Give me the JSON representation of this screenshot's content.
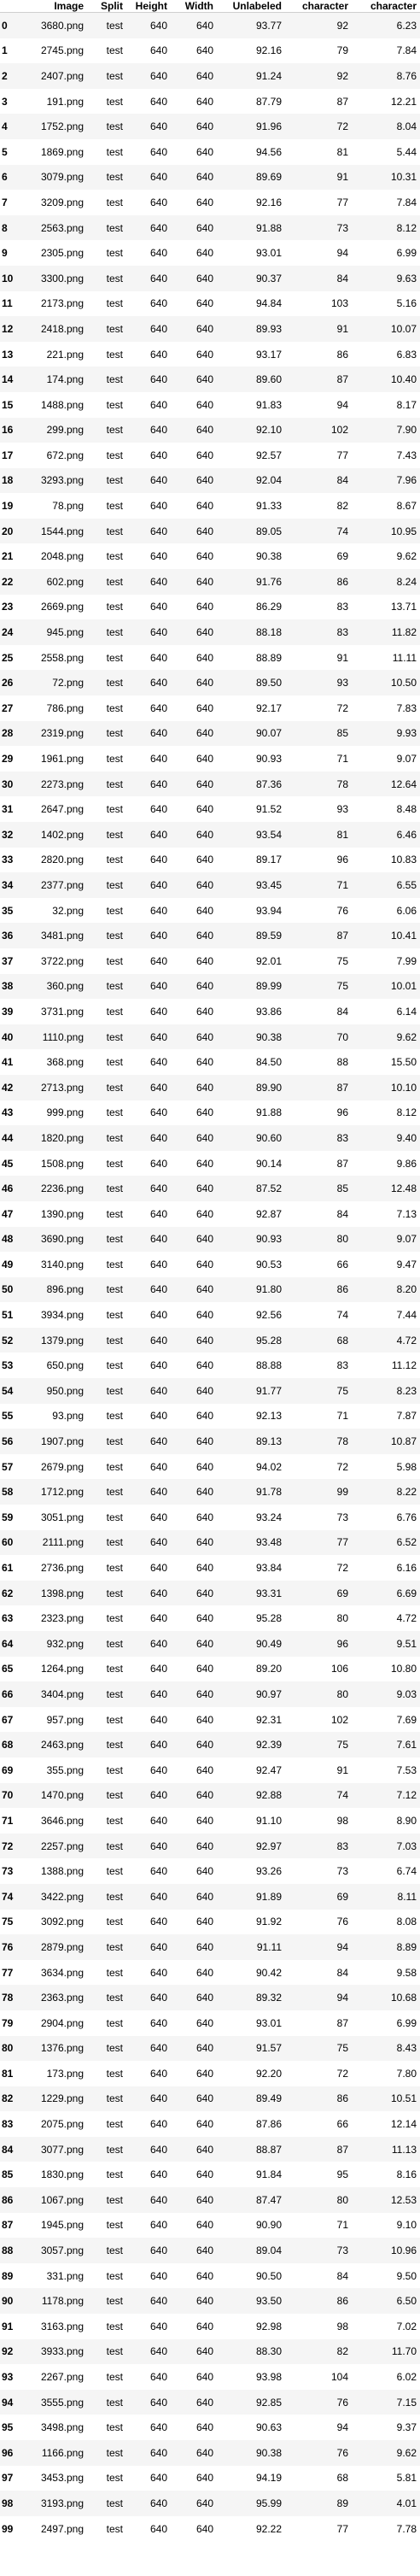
{
  "columns": [
    "",
    "Image",
    "Split",
    "Height",
    "Width",
    "Unlabeled",
    "character",
    "character"
  ],
  "rows": [
    [
      "0",
      "3680.png",
      "test",
      "640",
      "640",
      "93.77",
      "92",
      "6.23"
    ],
    [
      "1",
      "2745.png",
      "test",
      "640",
      "640",
      "92.16",
      "79",
      "7.84"
    ],
    [
      "2",
      "2407.png",
      "test",
      "640",
      "640",
      "91.24",
      "92",
      "8.76"
    ],
    [
      "3",
      "191.png",
      "test",
      "640",
      "640",
      "87.79",
      "87",
      "12.21"
    ],
    [
      "4",
      "1752.png",
      "test",
      "640",
      "640",
      "91.96",
      "72",
      "8.04"
    ],
    [
      "5",
      "1869.png",
      "test",
      "640",
      "640",
      "94.56",
      "81",
      "5.44"
    ],
    [
      "6",
      "3079.png",
      "test",
      "640",
      "640",
      "89.69",
      "91",
      "10.31"
    ],
    [
      "7",
      "3209.png",
      "test",
      "640",
      "640",
      "92.16",
      "77",
      "7.84"
    ],
    [
      "8",
      "2563.png",
      "test",
      "640",
      "640",
      "91.88",
      "73",
      "8.12"
    ],
    [
      "9",
      "2305.png",
      "test",
      "640",
      "640",
      "93.01",
      "94",
      "6.99"
    ],
    [
      "10",
      "3300.png",
      "test",
      "640",
      "640",
      "90.37",
      "84",
      "9.63"
    ],
    [
      "11",
      "2173.png",
      "test",
      "640",
      "640",
      "94.84",
      "103",
      "5.16"
    ],
    [
      "12",
      "2418.png",
      "test",
      "640",
      "640",
      "89.93",
      "91",
      "10.07"
    ],
    [
      "13",
      "221.png",
      "test",
      "640",
      "640",
      "93.17",
      "86",
      "6.83"
    ],
    [
      "14",
      "174.png",
      "test",
      "640",
      "640",
      "89.60",
      "87",
      "10.40"
    ],
    [
      "15",
      "1488.png",
      "test",
      "640",
      "640",
      "91.83",
      "94",
      "8.17"
    ],
    [
      "16",
      "299.png",
      "test",
      "640",
      "640",
      "92.10",
      "102",
      "7.90"
    ],
    [
      "17",
      "672.png",
      "test",
      "640",
      "640",
      "92.57",
      "77",
      "7.43"
    ],
    [
      "18",
      "3293.png",
      "test",
      "640",
      "640",
      "92.04",
      "84",
      "7.96"
    ],
    [
      "19",
      "78.png",
      "test",
      "640",
      "640",
      "91.33",
      "82",
      "8.67"
    ],
    [
      "20",
      "1544.png",
      "test",
      "640",
      "640",
      "89.05",
      "74",
      "10.95"
    ],
    [
      "21",
      "2048.png",
      "test",
      "640",
      "640",
      "90.38",
      "69",
      "9.62"
    ],
    [
      "22",
      "602.png",
      "test",
      "640",
      "640",
      "91.76",
      "86",
      "8.24"
    ],
    [
      "23",
      "2669.png",
      "test",
      "640",
      "640",
      "86.29",
      "83",
      "13.71"
    ],
    [
      "24",
      "945.png",
      "test",
      "640",
      "640",
      "88.18",
      "83",
      "11.82"
    ],
    [
      "25",
      "2558.png",
      "test",
      "640",
      "640",
      "88.89",
      "91",
      "11.11"
    ],
    [
      "26",
      "72.png",
      "test",
      "640",
      "640",
      "89.50",
      "93",
      "10.50"
    ],
    [
      "27",
      "786.png",
      "test",
      "640",
      "640",
      "92.17",
      "72",
      "7.83"
    ],
    [
      "28",
      "2319.png",
      "test",
      "640",
      "640",
      "90.07",
      "85",
      "9.93"
    ],
    [
      "29",
      "1961.png",
      "test",
      "640",
      "640",
      "90.93",
      "71",
      "9.07"
    ],
    [
      "30",
      "2273.png",
      "test",
      "640",
      "640",
      "87.36",
      "78",
      "12.64"
    ],
    [
      "31",
      "2647.png",
      "test",
      "640",
      "640",
      "91.52",
      "93",
      "8.48"
    ],
    [
      "32",
      "1402.png",
      "test",
      "640",
      "640",
      "93.54",
      "81",
      "6.46"
    ],
    [
      "33",
      "2820.png",
      "test",
      "640",
      "640",
      "89.17",
      "96",
      "10.83"
    ],
    [
      "34",
      "2377.png",
      "test",
      "640",
      "640",
      "93.45",
      "71",
      "6.55"
    ],
    [
      "35",
      "32.png",
      "test",
      "640",
      "640",
      "93.94",
      "76",
      "6.06"
    ],
    [
      "36",
      "3481.png",
      "test",
      "640",
      "640",
      "89.59",
      "87",
      "10.41"
    ],
    [
      "37",
      "3722.png",
      "test",
      "640",
      "640",
      "92.01",
      "75",
      "7.99"
    ],
    [
      "38",
      "360.png",
      "test",
      "640",
      "640",
      "89.99",
      "75",
      "10.01"
    ],
    [
      "39",
      "3731.png",
      "test",
      "640",
      "640",
      "93.86",
      "84",
      "6.14"
    ],
    [
      "40",
      "1110.png",
      "test",
      "640",
      "640",
      "90.38",
      "70",
      "9.62"
    ],
    [
      "41",
      "368.png",
      "test",
      "640",
      "640",
      "84.50",
      "88",
      "15.50"
    ],
    [
      "42",
      "2713.png",
      "test",
      "640",
      "640",
      "89.90",
      "87",
      "10.10"
    ],
    [
      "43",
      "999.png",
      "test",
      "640",
      "640",
      "91.88",
      "96",
      "8.12"
    ],
    [
      "44",
      "1820.png",
      "test",
      "640",
      "640",
      "90.60",
      "83",
      "9.40"
    ],
    [
      "45",
      "1508.png",
      "test",
      "640",
      "640",
      "90.14",
      "87",
      "9.86"
    ],
    [
      "46",
      "2236.png",
      "test",
      "640",
      "640",
      "87.52",
      "85",
      "12.48"
    ],
    [
      "47",
      "1390.png",
      "test",
      "640",
      "640",
      "92.87",
      "84",
      "7.13"
    ],
    [
      "48",
      "3690.png",
      "test",
      "640",
      "640",
      "90.93",
      "80",
      "9.07"
    ],
    [
      "49",
      "3140.png",
      "test",
      "640",
      "640",
      "90.53",
      "66",
      "9.47"
    ],
    [
      "50",
      "896.png",
      "test",
      "640",
      "640",
      "91.80",
      "86",
      "8.20"
    ],
    [
      "51",
      "3934.png",
      "test",
      "640",
      "640",
      "92.56",
      "74",
      "7.44"
    ],
    [
      "52",
      "1379.png",
      "test",
      "640",
      "640",
      "95.28",
      "68",
      "4.72"
    ],
    [
      "53",
      "650.png",
      "test",
      "640",
      "640",
      "88.88",
      "83",
      "11.12"
    ],
    [
      "54",
      "950.png",
      "test",
      "640",
      "640",
      "91.77",
      "75",
      "8.23"
    ],
    [
      "55",
      "93.png",
      "test",
      "640",
      "640",
      "92.13",
      "71",
      "7.87"
    ],
    [
      "56",
      "1907.png",
      "test",
      "640",
      "640",
      "89.13",
      "78",
      "10.87"
    ],
    [
      "57",
      "2679.png",
      "test",
      "640",
      "640",
      "94.02",
      "72",
      "5.98"
    ],
    [
      "58",
      "1712.png",
      "test",
      "640",
      "640",
      "91.78",
      "99",
      "8.22"
    ],
    [
      "59",
      "3051.png",
      "test",
      "640",
      "640",
      "93.24",
      "73",
      "6.76"
    ],
    [
      "60",
      "2111.png",
      "test",
      "640",
      "640",
      "93.48",
      "77",
      "6.52"
    ],
    [
      "61",
      "2736.png",
      "test",
      "640",
      "640",
      "93.84",
      "72",
      "6.16"
    ],
    [
      "62",
      "1398.png",
      "test",
      "640",
      "640",
      "93.31",
      "69",
      "6.69"
    ],
    [
      "63",
      "2323.png",
      "test",
      "640",
      "640",
      "95.28",
      "80",
      "4.72"
    ],
    [
      "64",
      "932.png",
      "test",
      "640",
      "640",
      "90.49",
      "96",
      "9.51"
    ],
    [
      "65",
      "1264.png",
      "test",
      "640",
      "640",
      "89.20",
      "106",
      "10.80"
    ],
    [
      "66",
      "3404.png",
      "test",
      "640",
      "640",
      "90.97",
      "80",
      "9.03"
    ],
    [
      "67",
      "957.png",
      "test",
      "640",
      "640",
      "92.31",
      "102",
      "7.69"
    ],
    [
      "68",
      "2463.png",
      "test",
      "640",
      "640",
      "92.39",
      "75",
      "7.61"
    ],
    [
      "69",
      "355.png",
      "test",
      "640",
      "640",
      "92.47",
      "91",
      "7.53"
    ],
    [
      "70",
      "1470.png",
      "test",
      "640",
      "640",
      "92.88",
      "74",
      "7.12"
    ],
    [
      "71",
      "3646.png",
      "test",
      "640",
      "640",
      "91.10",
      "98",
      "8.90"
    ],
    [
      "72",
      "2257.png",
      "test",
      "640",
      "640",
      "92.97",
      "83",
      "7.03"
    ],
    [
      "73",
      "1388.png",
      "test",
      "640",
      "640",
      "93.26",
      "73",
      "6.74"
    ],
    [
      "74",
      "3422.png",
      "test",
      "640",
      "640",
      "91.89",
      "69",
      "8.11"
    ],
    [
      "75",
      "3092.png",
      "test",
      "640",
      "640",
      "91.92",
      "76",
      "8.08"
    ],
    [
      "76",
      "2879.png",
      "test",
      "640",
      "640",
      "91.11",
      "94",
      "8.89"
    ],
    [
      "77",
      "3634.png",
      "test",
      "640",
      "640",
      "90.42",
      "84",
      "9.58"
    ],
    [
      "78",
      "2363.png",
      "test",
      "640",
      "640",
      "89.32",
      "94",
      "10.68"
    ],
    [
      "79",
      "2904.png",
      "test",
      "640",
      "640",
      "93.01",
      "87",
      "6.99"
    ],
    [
      "80",
      "1376.png",
      "test",
      "640",
      "640",
      "91.57",
      "75",
      "8.43"
    ],
    [
      "81",
      "173.png",
      "test",
      "640",
      "640",
      "92.20",
      "72",
      "7.80"
    ],
    [
      "82",
      "1229.png",
      "test",
      "640",
      "640",
      "89.49",
      "86",
      "10.51"
    ],
    [
      "83",
      "2075.png",
      "test",
      "640",
      "640",
      "87.86",
      "66",
      "12.14"
    ],
    [
      "84",
      "3077.png",
      "test",
      "640",
      "640",
      "88.87",
      "87",
      "11.13"
    ],
    [
      "85",
      "1830.png",
      "test",
      "640",
      "640",
      "91.84",
      "95",
      "8.16"
    ],
    [
      "86",
      "1067.png",
      "test",
      "640",
      "640",
      "87.47",
      "80",
      "12.53"
    ],
    [
      "87",
      "1945.png",
      "test",
      "640",
      "640",
      "90.90",
      "71",
      "9.10"
    ],
    [
      "88",
      "3057.png",
      "test",
      "640",
      "640",
      "89.04",
      "73",
      "10.96"
    ],
    [
      "89",
      "331.png",
      "test",
      "640",
      "640",
      "90.50",
      "84",
      "9.50"
    ],
    [
      "90",
      "1178.png",
      "test",
      "640",
      "640",
      "93.50",
      "86",
      "6.50"
    ],
    [
      "91",
      "3163.png",
      "test",
      "640",
      "640",
      "92.98",
      "98",
      "7.02"
    ],
    [
      "92",
      "3933.png",
      "test",
      "640",
      "640",
      "88.30",
      "82",
      "11.70"
    ],
    [
      "93",
      "2267.png",
      "test",
      "640",
      "640",
      "93.98",
      "104",
      "6.02"
    ],
    [
      "94",
      "3555.png",
      "test",
      "640",
      "640",
      "92.85",
      "76",
      "7.15"
    ],
    [
      "95",
      "3498.png",
      "test",
      "640",
      "640",
      "90.63",
      "94",
      "9.37"
    ],
    [
      "96",
      "1166.png",
      "test",
      "640",
      "640",
      "90.38",
      "76",
      "9.62"
    ],
    [
      "97",
      "3453.png",
      "test",
      "640",
      "640",
      "94.19",
      "68",
      "5.81"
    ],
    [
      "98",
      "3193.png",
      "test",
      "640",
      "640",
      "95.99",
      "89",
      "4.01"
    ],
    [
      "99",
      "2497.png",
      "test",
      "640",
      "640",
      "92.22",
      "77",
      "7.78"
    ]
  ]
}
